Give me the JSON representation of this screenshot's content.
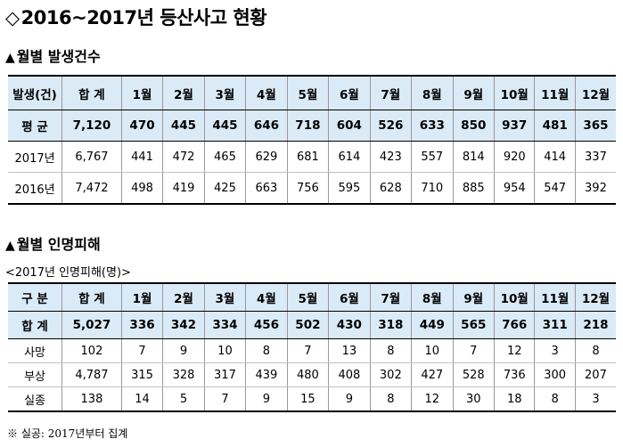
{
  "title": {
    "marker": "◇",
    "text": "2016~2017년 등산사고 현황"
  },
  "section1": {
    "marker": "▲",
    "label": "월별 발생건수"
  },
  "section2": {
    "marker": "▲",
    "label": "월별 인명피해"
  },
  "subtitle2": "<2017년 인명피해(명)>",
  "table1": {
    "header": [
      "발생(건)",
      "합 계",
      "1월",
      "2월",
      "3월",
      "4월",
      "5월",
      "6월",
      "7월",
      "8월",
      "9월",
      "10월",
      "11월",
      "12월"
    ],
    "summary": [
      "평 균",
      "7,120",
      "470",
      "445",
      "445",
      "646",
      "718",
      "604",
      "526",
      "633",
      "850",
      "937",
      "481",
      "365"
    ],
    "rows": [
      [
        "2017년",
        "6,767",
        "441",
        "472",
        "465",
        "629",
        "681",
        "614",
        "423",
        "557",
        "814",
        "920",
        "414",
        "337"
      ],
      [
        "2016년",
        "7,472",
        "498",
        "419",
        "425",
        "663",
        "756",
        "595",
        "628",
        "710",
        "885",
        "954",
        "547",
        "392"
      ]
    ]
  },
  "table2": {
    "header": [
      "구 분",
      "합 계",
      "1월",
      "2월",
      "3월",
      "4월",
      "5월",
      "6월",
      "7월",
      "8월",
      "9월",
      "10월",
      "11월",
      "12월"
    ],
    "summary": [
      "합 계",
      "5,027",
      "336",
      "342",
      "334",
      "456",
      "502",
      "430",
      "318",
      "449",
      "565",
      "766",
      "311",
      "218"
    ],
    "rows": [
      [
        "사망",
        "102",
        "7",
        "9",
        "10",
        "8",
        "7",
        "13",
        "8",
        "10",
        "7",
        "12",
        "3",
        "8"
      ],
      [
        "부상",
        "4,787",
        "315",
        "328",
        "317",
        "439",
        "480",
        "408",
        "302",
        "427",
        "528",
        "736",
        "300",
        "207"
      ],
      [
        "실종",
        "138",
        "14",
        "5",
        "7",
        "9",
        "15",
        "9",
        "8",
        "12",
        "30",
        "18",
        "8",
        "3"
      ]
    ]
  },
  "footnote": "※ 실공: 2017년부터 집계",
  "colors": {
    "header_bg": "#dbeaf7",
    "border": "#000000"
  }
}
